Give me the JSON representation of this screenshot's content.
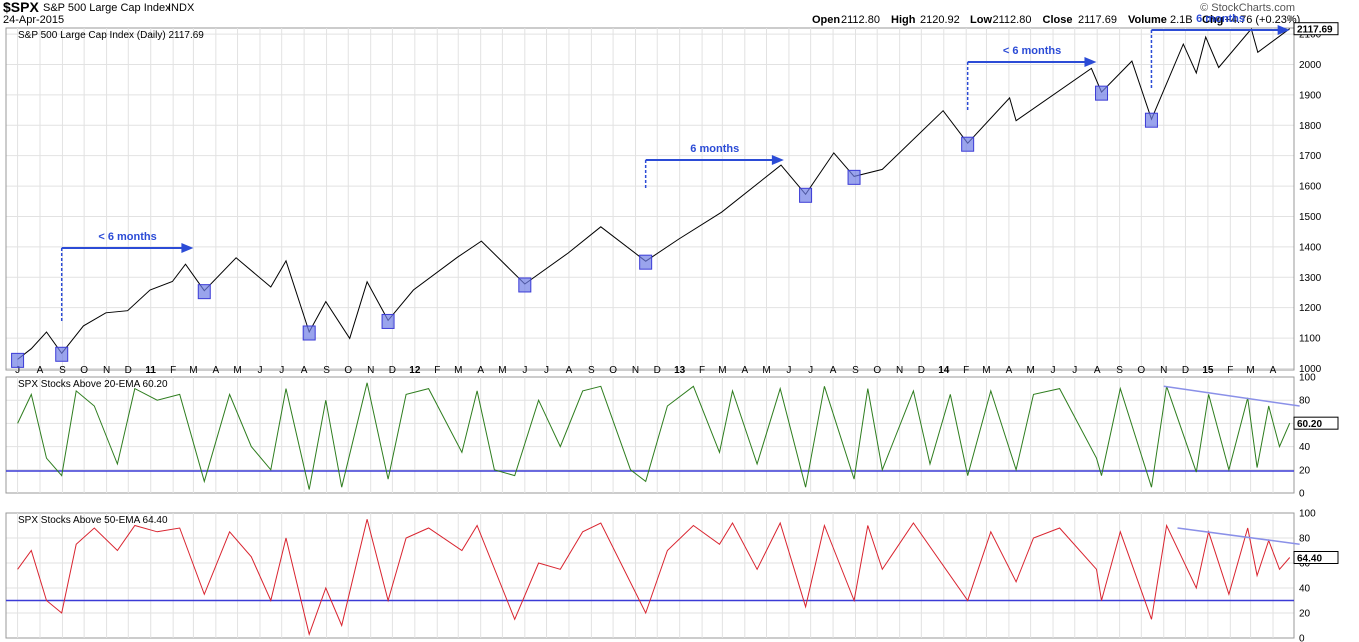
{
  "header": {
    "symbol": "$SPX",
    "name": "S&P 500 Large Cap Index",
    "exchange": "INDX",
    "date": "24-Apr-2015",
    "watermark": "© StockCharts.com",
    "open_label": "Open",
    "open": "2112.80",
    "high_label": "High",
    "high": "2120.92",
    "low_label": "Low",
    "low": "2112.80",
    "close_label": "Close",
    "close": "2117.69",
    "volume_label": "Volume",
    "volume": "2.1B",
    "chg_label": "Chg",
    "chg": "+4.76 (+0.23%)"
  },
  "colors": {
    "price": "#000000",
    "ema20": "#2e7d1e",
    "ema50": "#d9242f",
    "reference": "#3b3bd6",
    "trend": "#8a90e8",
    "arrow": "#2b4bd6",
    "box_fill": "#6f7ee6",
    "grid": "#e2e2e2"
  },
  "chart_data": [
    {
      "type": "line",
      "title": "S&P 500 Large Cap Index (Daily) 2117.69",
      "last_value": "2117.69",
      "yticks": [
        1000,
        1100,
        1200,
        1300,
        1400,
        1500,
        1600,
        1700,
        1800,
        1900,
        2000,
        2100
      ],
      "ylim": [
        995,
        2120
      ],
      "x_labels": [
        "J",
        "A",
        "S",
        "O",
        "N",
        "D",
        "11",
        "F",
        "M",
        "A",
        "M",
        "J",
        "J",
        "A",
        "S",
        "O",
        "N",
        "D",
        "12",
        "F",
        "M",
        "A",
        "M",
        "J",
        "J",
        "A",
        "S",
        "O",
        "N",
        "D",
        "13",
        "F",
        "M",
        "A",
        "M",
        "J",
        "J",
        "A",
        "S",
        "O",
        "N",
        "D",
        "14",
        "F",
        "M",
        "A",
        "M",
        "J",
        "J",
        "A",
        "S",
        "O",
        "N",
        "D",
        "15",
        "F",
        "M",
        "A"
      ],
      "x_range": [
        "2010-07",
        "2015-04"
      ],
      "series": [
        {
          "points": [
            [
              "2010-07-01",
              1030
            ],
            [
              "2010-07-20",
              1065
            ],
            [
              "2010-08-10",
              1120
            ],
            [
              "2010-08-31",
              1050
            ],
            [
              "2010-09-30",
              1140
            ],
            [
              "2010-10-31",
              1183
            ],
            [
              "2010-11-30",
              1190
            ],
            [
              "2010-12-31",
              1258
            ],
            [
              "2011-01-31",
              1286
            ],
            [
              "2011-02-18",
              1343
            ],
            [
              "2011-03-16",
              1256
            ],
            [
              "2011-04-29",
              1364
            ],
            [
              "2011-06-16",
              1268
            ],
            [
              "2011-07-07",
              1354
            ],
            [
              "2011-08-08",
              1120
            ],
            [
              "2011-08-31",
              1220
            ],
            [
              "2011-10-03",
              1099
            ],
            [
              "2011-10-27",
              1285
            ],
            [
              "2011-11-25",
              1158
            ],
            [
              "2011-12-30",
              1258
            ],
            [
              "2012-02-29",
              1366
            ],
            [
              "2012-04-02",
              1419
            ],
            [
              "2012-06-01",
              1278
            ],
            [
              "2012-07-31",
              1380
            ],
            [
              "2012-09-14",
              1466
            ],
            [
              "2012-11-15",
              1353
            ],
            [
              "2012-12-31",
              1426
            ],
            [
              "2013-02-28",
              1514
            ],
            [
              "2013-05-21",
              1669
            ],
            [
              "2013-06-24",
              1573
            ],
            [
              "2013-08-02",
              1709
            ],
            [
              "2013-08-30",
              1632
            ],
            [
              "2013-10-08",
              1655
            ],
            [
              "2013-12-31",
              1848
            ],
            [
              "2014-02-03",
              1741
            ],
            [
              "2014-04-02",
              1890
            ],
            [
              "2014-04-11",
              1815
            ],
            [
              "2014-07-24",
              1987
            ],
            [
              "2014-08-07",
              1909
            ],
            [
              "2014-09-18",
              2011
            ],
            [
              "2014-10-15",
              1820
            ],
            [
              "2014-11-28",
              2067
            ],
            [
              "2014-12-16",
              1972
            ],
            [
              "2014-12-29",
              2090
            ],
            [
              "2015-01-16",
              1990
            ],
            [
              "2015-03-02",
              2117
            ],
            [
              "2015-03-11",
              2040
            ],
            [
              "2015-04-24",
              2117.69
            ]
          ]
        }
      ],
      "annotations": [
        "< 6 months",
        "6 months",
        "< 6 months",
        "6 months"
      ]
    },
    {
      "type": "line",
      "title": "SPX Stocks Above 20-EMA 60.20",
      "last_value": "60.20",
      "yticks": [
        0,
        20,
        40,
        60,
        80,
        100
      ],
      "ylim": [
        0,
        100
      ],
      "reference_line": 19,
      "trendline": [
        [
          "2014-11-01",
          92
        ],
        [
          "2015-04-24",
          75
        ]
      ],
      "series": [
        {
          "name": "SPX Stocks Above 20-EMA",
          "points": [
            [
              "2010-07-01",
              60
            ],
            [
              "2010-07-20",
              85
            ],
            [
              "2010-08-10",
              30
            ],
            [
              "2010-08-31",
              15
            ],
            [
              "2010-09-20",
              88
            ],
            [
              "2010-10-15",
              75
            ],
            [
              "2010-11-16",
              25
            ],
            [
              "2010-12-10",
              90
            ],
            [
              "2011-01-10",
              80
            ],
            [
              "2011-02-10",
              85
            ],
            [
              "2011-03-16",
              10
            ],
            [
              "2011-04-20",
              85
            ],
            [
              "2011-05-20",
              40
            ],
            [
              "2011-06-16",
              20
            ],
            [
              "2011-07-07",
              90
            ],
            [
              "2011-08-08",
              3
            ],
            [
              "2011-08-31",
              80
            ],
            [
              "2011-09-22",
              5
            ],
            [
              "2011-10-27",
              95
            ],
            [
              "2011-11-25",
              12
            ],
            [
              "2011-12-20",
              85
            ],
            [
              "2012-01-20",
              90
            ],
            [
              "2012-03-06",
              35
            ],
            [
              "2012-03-27",
              88
            ],
            [
              "2012-04-20",
              20
            ],
            [
              "2012-05-18",
              15
            ],
            [
              "2012-06-20",
              80
            ],
            [
              "2012-07-20",
              40
            ],
            [
              "2012-08-20",
              88
            ],
            [
              "2012-09-14",
              92
            ],
            [
              "2012-10-25",
              20
            ],
            [
              "2012-11-15",
              10
            ],
            [
              "2012-12-15",
              75
            ],
            [
              "2013-01-20",
              92
            ],
            [
              "2013-02-25",
              35
            ],
            [
              "2013-03-15",
              88
            ],
            [
              "2013-04-18",
              25
            ],
            [
              "2013-05-20",
              90
            ],
            [
              "2013-06-24",
              5
            ],
            [
              "2013-07-20",
              92
            ],
            [
              "2013-08-30",
              12
            ],
            [
              "2013-09-18",
              90
            ],
            [
              "2013-10-08",
              20
            ],
            [
              "2013-11-20",
              88
            ],
            [
              "2013-12-13",
              25
            ],
            [
              "2014-01-10",
              85
            ],
            [
              "2014-02-03",
              15
            ],
            [
              "2014-03-07",
              88
            ],
            [
              "2014-04-11",
              20
            ],
            [
              "2014-05-05",
              85
            ],
            [
              "2014-06-10",
              90
            ],
            [
              "2014-07-31",
              30
            ],
            [
              "2014-08-07",
              15
            ],
            [
              "2014-09-02",
              90
            ],
            [
              "2014-10-15",
              5
            ],
            [
              "2014-11-05",
              92
            ],
            [
              "2014-12-16",
              18
            ],
            [
              "2015-01-02",
              85
            ],
            [
              "2015-01-30",
              20
            ],
            [
              "2015-02-25",
              82
            ],
            [
              "2015-03-10",
              22
            ],
            [
              "2015-03-26",
              75
            ],
            [
              "2015-04-10",
              40
            ],
            [
              "2015-04-24",
              60.2
            ]
          ]
        }
      ]
    },
    {
      "type": "line",
      "title": "SPX Stocks Above 50-EMA 64.40",
      "last_value": "64.40",
      "yticks": [
        0,
        20,
        40,
        60,
        80,
        100
      ],
      "ylim": [
        0,
        100
      ],
      "reference_line": 30,
      "trendline": [
        [
          "2014-11-20",
          88
        ],
        [
          "2015-04-24",
          75
        ]
      ],
      "series": [
        {
          "name": "SPX Stocks Above 50-EMA",
          "points": [
            [
              "2010-07-01",
              55
            ],
            [
              "2010-07-20",
              70
            ],
            [
              "2010-08-10",
              30
            ],
            [
              "2010-08-31",
              20
            ],
            [
              "2010-09-20",
              75
            ],
            [
              "2010-10-15",
              88
            ],
            [
              "2010-11-16",
              70
            ],
            [
              "2010-12-10",
              90
            ],
            [
              "2011-01-10",
              85
            ],
            [
              "2011-02-10",
              88
            ],
            [
              "2011-03-16",
              35
            ],
            [
              "2011-04-20",
              85
            ],
            [
              "2011-05-20",
              65
            ],
            [
              "2011-06-16",
              30
            ],
            [
              "2011-07-07",
              80
            ],
            [
              "2011-08-08",
              3
            ],
            [
              "2011-08-31",
              40
            ],
            [
              "2011-09-22",
              10
            ],
            [
              "2011-10-27",
              95
            ],
            [
              "2011-11-25",
              30
            ],
            [
              "2011-12-20",
              80
            ],
            [
              "2012-01-20",
              88
            ],
            [
              "2012-03-06",
              70
            ],
            [
              "2012-03-27",
              90
            ],
            [
              "2012-05-18",
              15
            ],
            [
              "2012-06-20",
              60
            ],
            [
              "2012-07-20",
              55
            ],
            [
              "2012-08-20",
              85
            ],
            [
              "2012-09-14",
              92
            ],
            [
              "2012-11-15",
              20
            ],
            [
              "2012-12-15",
              70
            ],
            [
              "2013-01-20",
              90
            ],
            [
              "2013-02-25",
              75
            ],
            [
              "2013-03-15",
              92
            ],
            [
              "2013-04-18",
              55
            ],
            [
              "2013-05-20",
              92
            ],
            [
              "2013-06-24",
              25
            ],
            [
              "2013-07-20",
              90
            ],
            [
              "2013-08-30",
              30
            ],
            [
              "2013-09-18",
              90
            ],
            [
              "2013-10-08",
              55
            ],
            [
              "2013-11-20",
              92
            ],
            [
              "2014-02-03",
              30
            ],
            [
              "2014-03-07",
              85
            ],
            [
              "2014-04-11",
              45
            ],
            [
              "2014-05-05",
              80
            ],
            [
              "2014-06-10",
              88
            ],
            [
              "2014-07-31",
              55
            ],
            [
              "2014-08-07",
              30
            ],
            [
              "2014-09-02",
              85
            ],
            [
              "2014-10-15",
              15
            ],
            [
              "2014-11-05",
              90
            ],
            [
              "2014-12-16",
              40
            ],
            [
              "2015-01-02",
              85
            ],
            [
              "2015-01-30",
              35
            ],
            [
              "2015-02-25",
              88
            ],
            [
              "2015-03-10",
              50
            ],
            [
              "2015-03-26",
              78
            ],
            [
              "2015-04-10",
              55
            ],
            [
              "2015-04-24",
              64.4
            ]
          ]
        }
      ]
    }
  ]
}
